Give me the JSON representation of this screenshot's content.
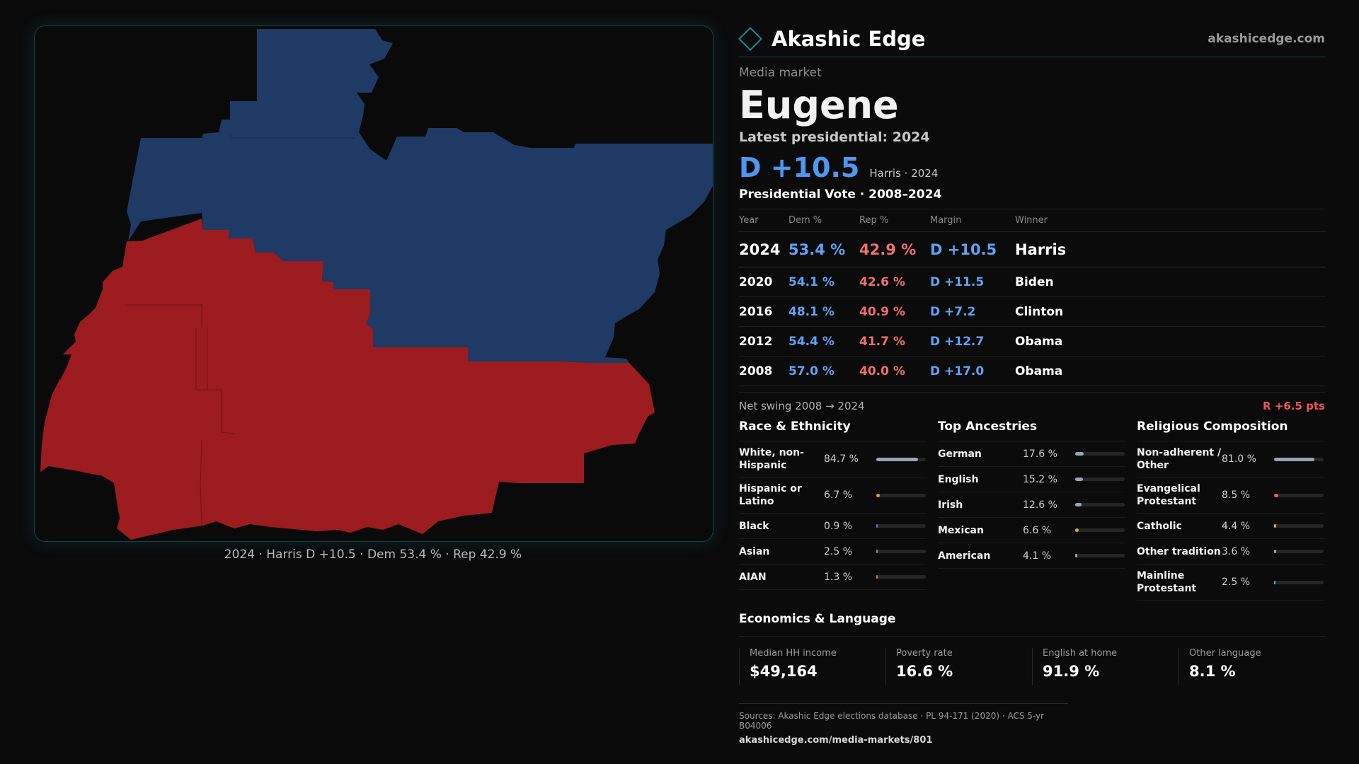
{
  "map": {
    "caption": "2024 · Harris D +10.5 · Dem 53.4 % · Rep 42.9 %",
    "dem_color": "#1f3a64",
    "rep_color": "#9c1c20"
  },
  "brand": {
    "name": "Akashic Edge",
    "url": "akashicedge.com",
    "accent": "#1b8a96"
  },
  "market": {
    "kicker": "Media market",
    "name": "Eugene",
    "latest_label": "Latest presidential: 2024",
    "headline_margin": "D +10.5",
    "headline_sub": "Harris · 2024"
  },
  "presidential": {
    "title": "Presidential Vote · 2008–2024",
    "headers": {
      "year": "Year",
      "dem": "Dem %",
      "rep": "Rep %",
      "margin": "Margin",
      "winner": "Winner"
    },
    "rows": [
      {
        "year": "2024",
        "dem": "53.4 %",
        "rep": "42.9 %",
        "margin": "D +10.5",
        "winner": "Harris"
      },
      {
        "year": "2020",
        "dem": "54.1 %",
        "rep": "42.6 %",
        "margin": "D +11.5",
        "winner": "Biden"
      },
      {
        "year": "2016",
        "dem": "48.1 %",
        "rep": "40.9 %",
        "margin": "D +7.2",
        "winner": "Clinton"
      },
      {
        "year": "2012",
        "dem": "54.4 %",
        "rep": "41.7 %",
        "margin": "D +12.7",
        "winner": "Obama"
      },
      {
        "year": "2008",
        "dem": "57.0 %",
        "rep": "40.0 %",
        "margin": "D +17.0",
        "winner": "Obama"
      }
    ],
    "swing_label": "Net swing 2008 → 2024",
    "swing_value": "R +6.5 pts"
  },
  "race": {
    "title": "Race & Ethnicity",
    "items": [
      {
        "label": "White, non-Hispanic",
        "pct": "84.7 %",
        "value": 84.7,
        "color": "#9aa4b4"
      },
      {
        "label": "Hispanic or Latino",
        "pct": "6.7 %",
        "value": 6.7,
        "color": "#e0a33a"
      },
      {
        "label": "Black",
        "pct": "0.9 %",
        "value": 0.9,
        "color": "#7a6bd0"
      },
      {
        "label": "Asian",
        "pct": "2.5 %",
        "value": 2.5,
        "color": "#3fb89a"
      },
      {
        "label": "AIAN",
        "pct": "1.3 %",
        "value": 1.3,
        "color": "#d0703a"
      }
    ]
  },
  "ancestry": {
    "title": "Top Ancestries",
    "items": [
      {
        "label": "German",
        "pct": "17.6 %",
        "value": 17.6,
        "color": "#9aa4b4"
      },
      {
        "label": "English",
        "pct": "15.2 %",
        "value": 15.2,
        "color": "#9aa4b4"
      },
      {
        "label": "Irish",
        "pct": "12.6 %",
        "value": 12.6,
        "color": "#9aa4b4"
      },
      {
        "label": "Mexican",
        "pct": "6.6 %",
        "value": 6.6,
        "color": "#e0a33a"
      },
      {
        "label": "American",
        "pct": "4.1 %",
        "value": 4.1,
        "color": "#9aa4b4"
      }
    ]
  },
  "religion": {
    "title": "Religious Composition",
    "items": [
      {
        "label": "Non-adherent / Other",
        "pct": "81.0 %",
        "value": 81.0,
        "color": "#9aa4b4"
      },
      {
        "label": "Evangelical Protestant",
        "pct": "8.5 %",
        "value": 8.5,
        "color": "#e06070"
      },
      {
        "label": "Catholic",
        "pct": "4.4 %",
        "value": 4.4,
        "color": "#e0a33a"
      },
      {
        "label": "Other tradition",
        "pct": "3.6 %",
        "value": 3.6,
        "color": "#9aa4b4"
      },
      {
        "label": "Mainline Protestant",
        "pct": "2.5 %",
        "value": 2.5,
        "color": "#4f97f0"
      }
    ]
  },
  "economics": {
    "title": "Economics & Language",
    "cells": [
      {
        "label": "Median HH income",
        "value": "$49,164"
      },
      {
        "label": "Poverty rate",
        "value": "16.6 %"
      },
      {
        "label": "English at home",
        "value": "91.9 %"
      },
      {
        "label": "Other language",
        "value": "8.1 %"
      }
    ]
  },
  "sources": {
    "line": "Sources: Akashic Edge elections database · PL 94-171 (2020) · ACS 5-yr B04006",
    "link": "akashicedge.com/media-markets/801"
  }
}
